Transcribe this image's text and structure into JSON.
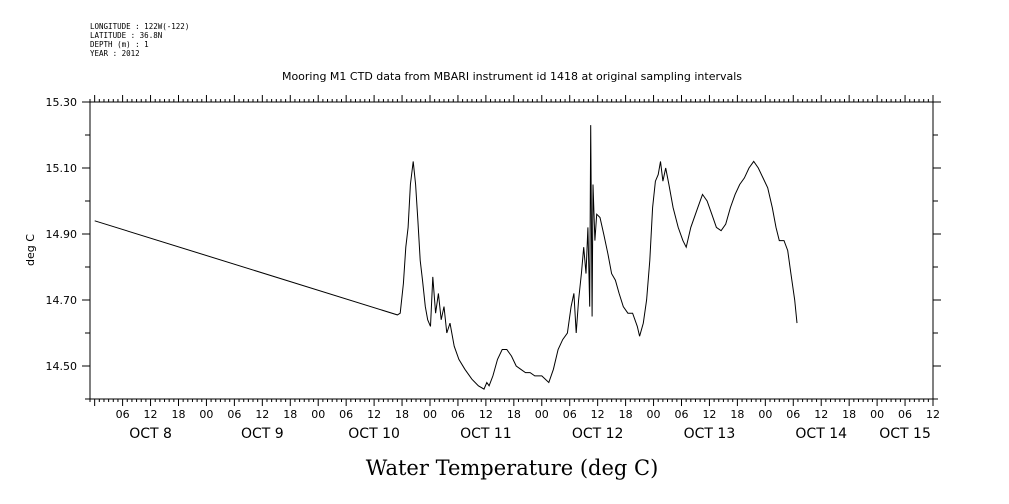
{
  "meta": {
    "longitude": "LONGITUDE : 122W(-122)",
    "latitude": "LATITUDE : 36.8N",
    "depth": "DEPTH (m) : 1",
    "year": "YEAR : 2012"
  },
  "chart_data": {
    "type": "line",
    "title": "Mooring M1 CTD data from MBARI instrument id 1418 at original sampling intervals",
    "xlabel": "Water Temperature (deg C)",
    "ylabel": "deg C",
    "ylim": [
      14.4,
      15.3
    ],
    "yticks": [
      14.5,
      14.7,
      14.9,
      15.1,
      15.3
    ],
    "ytick_labels": [
      "14.50",
      "14.70",
      "14.90",
      "15.10",
      "15.30"
    ],
    "xlim_hours": [
      0,
      180
    ],
    "hour_ticks": [
      {
        "t": 6,
        "label": "06"
      },
      {
        "t": 12,
        "label": "12"
      },
      {
        "t": 18,
        "label": "18"
      },
      {
        "t": 24,
        "label": "00"
      },
      {
        "t": 30,
        "label": "06"
      },
      {
        "t": 36,
        "label": "12"
      },
      {
        "t": 42,
        "label": "18"
      },
      {
        "t": 48,
        "label": "00"
      },
      {
        "t": 54,
        "label": "06"
      },
      {
        "t": 60,
        "label": "12"
      },
      {
        "t": 66,
        "label": "18"
      },
      {
        "t": 72,
        "label": "00"
      },
      {
        "t": 78,
        "label": "06"
      },
      {
        "t": 84,
        "label": "12"
      },
      {
        "t": 90,
        "label": "18"
      },
      {
        "t": 96,
        "label": "00"
      },
      {
        "t": 102,
        "label": "06"
      },
      {
        "t": 108,
        "label": "12"
      },
      {
        "t": 114,
        "label": "18"
      },
      {
        "t": 120,
        "label": "00"
      },
      {
        "t": 126,
        "label": "06"
      },
      {
        "t": 132,
        "label": "12"
      },
      {
        "t": 138,
        "label": "18"
      },
      {
        "t": 144,
        "label": "00"
      },
      {
        "t": 150,
        "label": "06"
      },
      {
        "t": 156,
        "label": "12"
      },
      {
        "t": 162,
        "label": "18"
      },
      {
        "t": 168,
        "label": "00"
      },
      {
        "t": 174,
        "label": "06"
      },
      {
        "t": 180,
        "label": "12"
      }
    ],
    "day_labels": [
      {
        "t": 12,
        "label": "OCT  8"
      },
      {
        "t": 36,
        "label": "OCT  9"
      },
      {
        "t": 60,
        "label": "OCT 10"
      },
      {
        "t": 84,
        "label": "OCT 11"
      },
      {
        "t": 108,
        "label": "OCT 12"
      },
      {
        "t": 132,
        "label": "OCT 13"
      },
      {
        "t": 156,
        "label": "OCT 14"
      },
      {
        "t": 174,
        "label": "OCT 15"
      }
    ],
    "series": [
      {
        "color": "#000000",
        "points": [
          [
            0,
            14.94
          ],
          [
            65,
            14.655
          ],
          [
            65.6,
            14.66
          ],
          [
            66.3,
            14.75
          ],
          [
            66.8,
            14.86
          ],
          [
            67.3,
            14.92
          ],
          [
            67.8,
            15.05
          ],
          [
            68.4,
            15.12
          ],
          [
            68.9,
            15.05
          ],
          [
            69.4,
            14.94
          ],
          [
            69.9,
            14.82
          ],
          [
            70.4,
            14.76
          ],
          [
            71,
            14.68
          ],
          [
            71.5,
            14.64
          ],
          [
            72.1,
            14.62
          ],
          [
            72.6,
            14.77
          ],
          [
            73.2,
            14.66
          ],
          [
            73.8,
            14.72
          ],
          [
            74.4,
            14.64
          ],
          [
            75,
            14.68
          ],
          [
            75.6,
            14.6
          ],
          [
            76.3,
            14.63
          ],
          [
            77.2,
            14.56
          ],
          [
            78.2,
            14.52
          ],
          [
            79.5,
            14.49
          ],
          [
            81,
            14.46
          ],
          [
            82.4,
            14.44
          ],
          [
            83.6,
            14.43
          ],
          [
            84.2,
            14.45
          ],
          [
            84.7,
            14.44
          ],
          [
            85.5,
            14.47
          ],
          [
            86.5,
            14.52
          ],
          [
            87.5,
            14.55
          ],
          [
            88.5,
            14.55
          ],
          [
            89.5,
            14.53
          ],
          [
            90.5,
            14.5
          ],
          [
            91.5,
            14.49
          ],
          [
            92.5,
            14.48
          ],
          [
            93.5,
            14.48
          ],
          [
            94.5,
            14.47
          ],
          [
            96,
            14.47
          ],
          [
            97.5,
            14.45
          ],
          [
            98.5,
            14.49
          ],
          [
            99.5,
            14.55
          ],
          [
            100.5,
            14.58
          ],
          [
            101.5,
            14.6
          ],
          [
            102.3,
            14.68
          ],
          [
            102.9,
            14.72
          ],
          [
            103.4,
            14.6
          ],
          [
            103.9,
            14.7
          ],
          [
            104.5,
            14.78
          ],
          [
            105,
            14.86
          ],
          [
            105.5,
            14.78
          ],
          [
            105.9,
            14.92
          ],
          [
            106.3,
            14.68
          ],
          [
            106.5,
            15.23
          ],
          [
            106.8,
            14.65
          ],
          [
            107,
            15.05
          ],
          [
            107.4,
            14.88
          ],
          [
            107.8,
            14.96
          ],
          [
            108.5,
            14.95
          ],
          [
            109.3,
            14.9
          ],
          [
            110.2,
            14.84
          ],
          [
            111,
            14.78
          ],
          [
            111.8,
            14.76
          ],
          [
            112.6,
            14.72
          ],
          [
            113.5,
            14.68
          ],
          [
            114.5,
            14.66
          ],
          [
            115.5,
            14.66
          ],
          [
            116.5,
            14.62
          ],
          [
            117,
            14.59
          ],
          [
            117.8,
            14.63
          ],
          [
            118.5,
            14.7
          ],
          [
            119.2,
            14.82
          ],
          [
            119.8,
            14.98
          ],
          [
            120.4,
            15.06
          ],
          [
            121,
            15.08
          ],
          [
            121.5,
            15.12
          ],
          [
            122,
            15.06
          ],
          [
            122.6,
            15.1
          ],
          [
            123.3,
            15.05
          ],
          [
            124.2,
            14.98
          ],
          [
            125.3,
            14.92
          ],
          [
            126.3,
            14.88
          ],
          [
            127,
            14.86
          ],
          [
            128,
            14.92
          ],
          [
            129.5,
            14.98
          ],
          [
            130.5,
            15.02
          ],
          [
            131.5,
            15.0
          ],
          [
            132.5,
            14.96
          ],
          [
            133.5,
            14.92
          ],
          [
            134.5,
            14.91
          ],
          [
            135.5,
            14.93
          ],
          [
            136.5,
            14.98
          ],
          [
            137.5,
            15.02
          ],
          [
            138.5,
            15.05
          ],
          [
            139.5,
            15.07
          ],
          [
            140.5,
            15.1
          ],
          [
            141.5,
            15.12
          ],
          [
            142.5,
            15.1
          ],
          [
            143.5,
            15.07
          ],
          [
            144.5,
            15.04
          ],
          [
            145.5,
            14.98
          ],
          [
            146.3,
            14.92
          ],
          [
            147,
            14.88
          ],
          [
            148,
            14.88
          ],
          [
            148.8,
            14.85
          ],
          [
            149.5,
            14.78
          ],
          [
            150.3,
            14.7
          ],
          [
            150.8,
            14.63
          ]
        ]
      }
    ]
  }
}
